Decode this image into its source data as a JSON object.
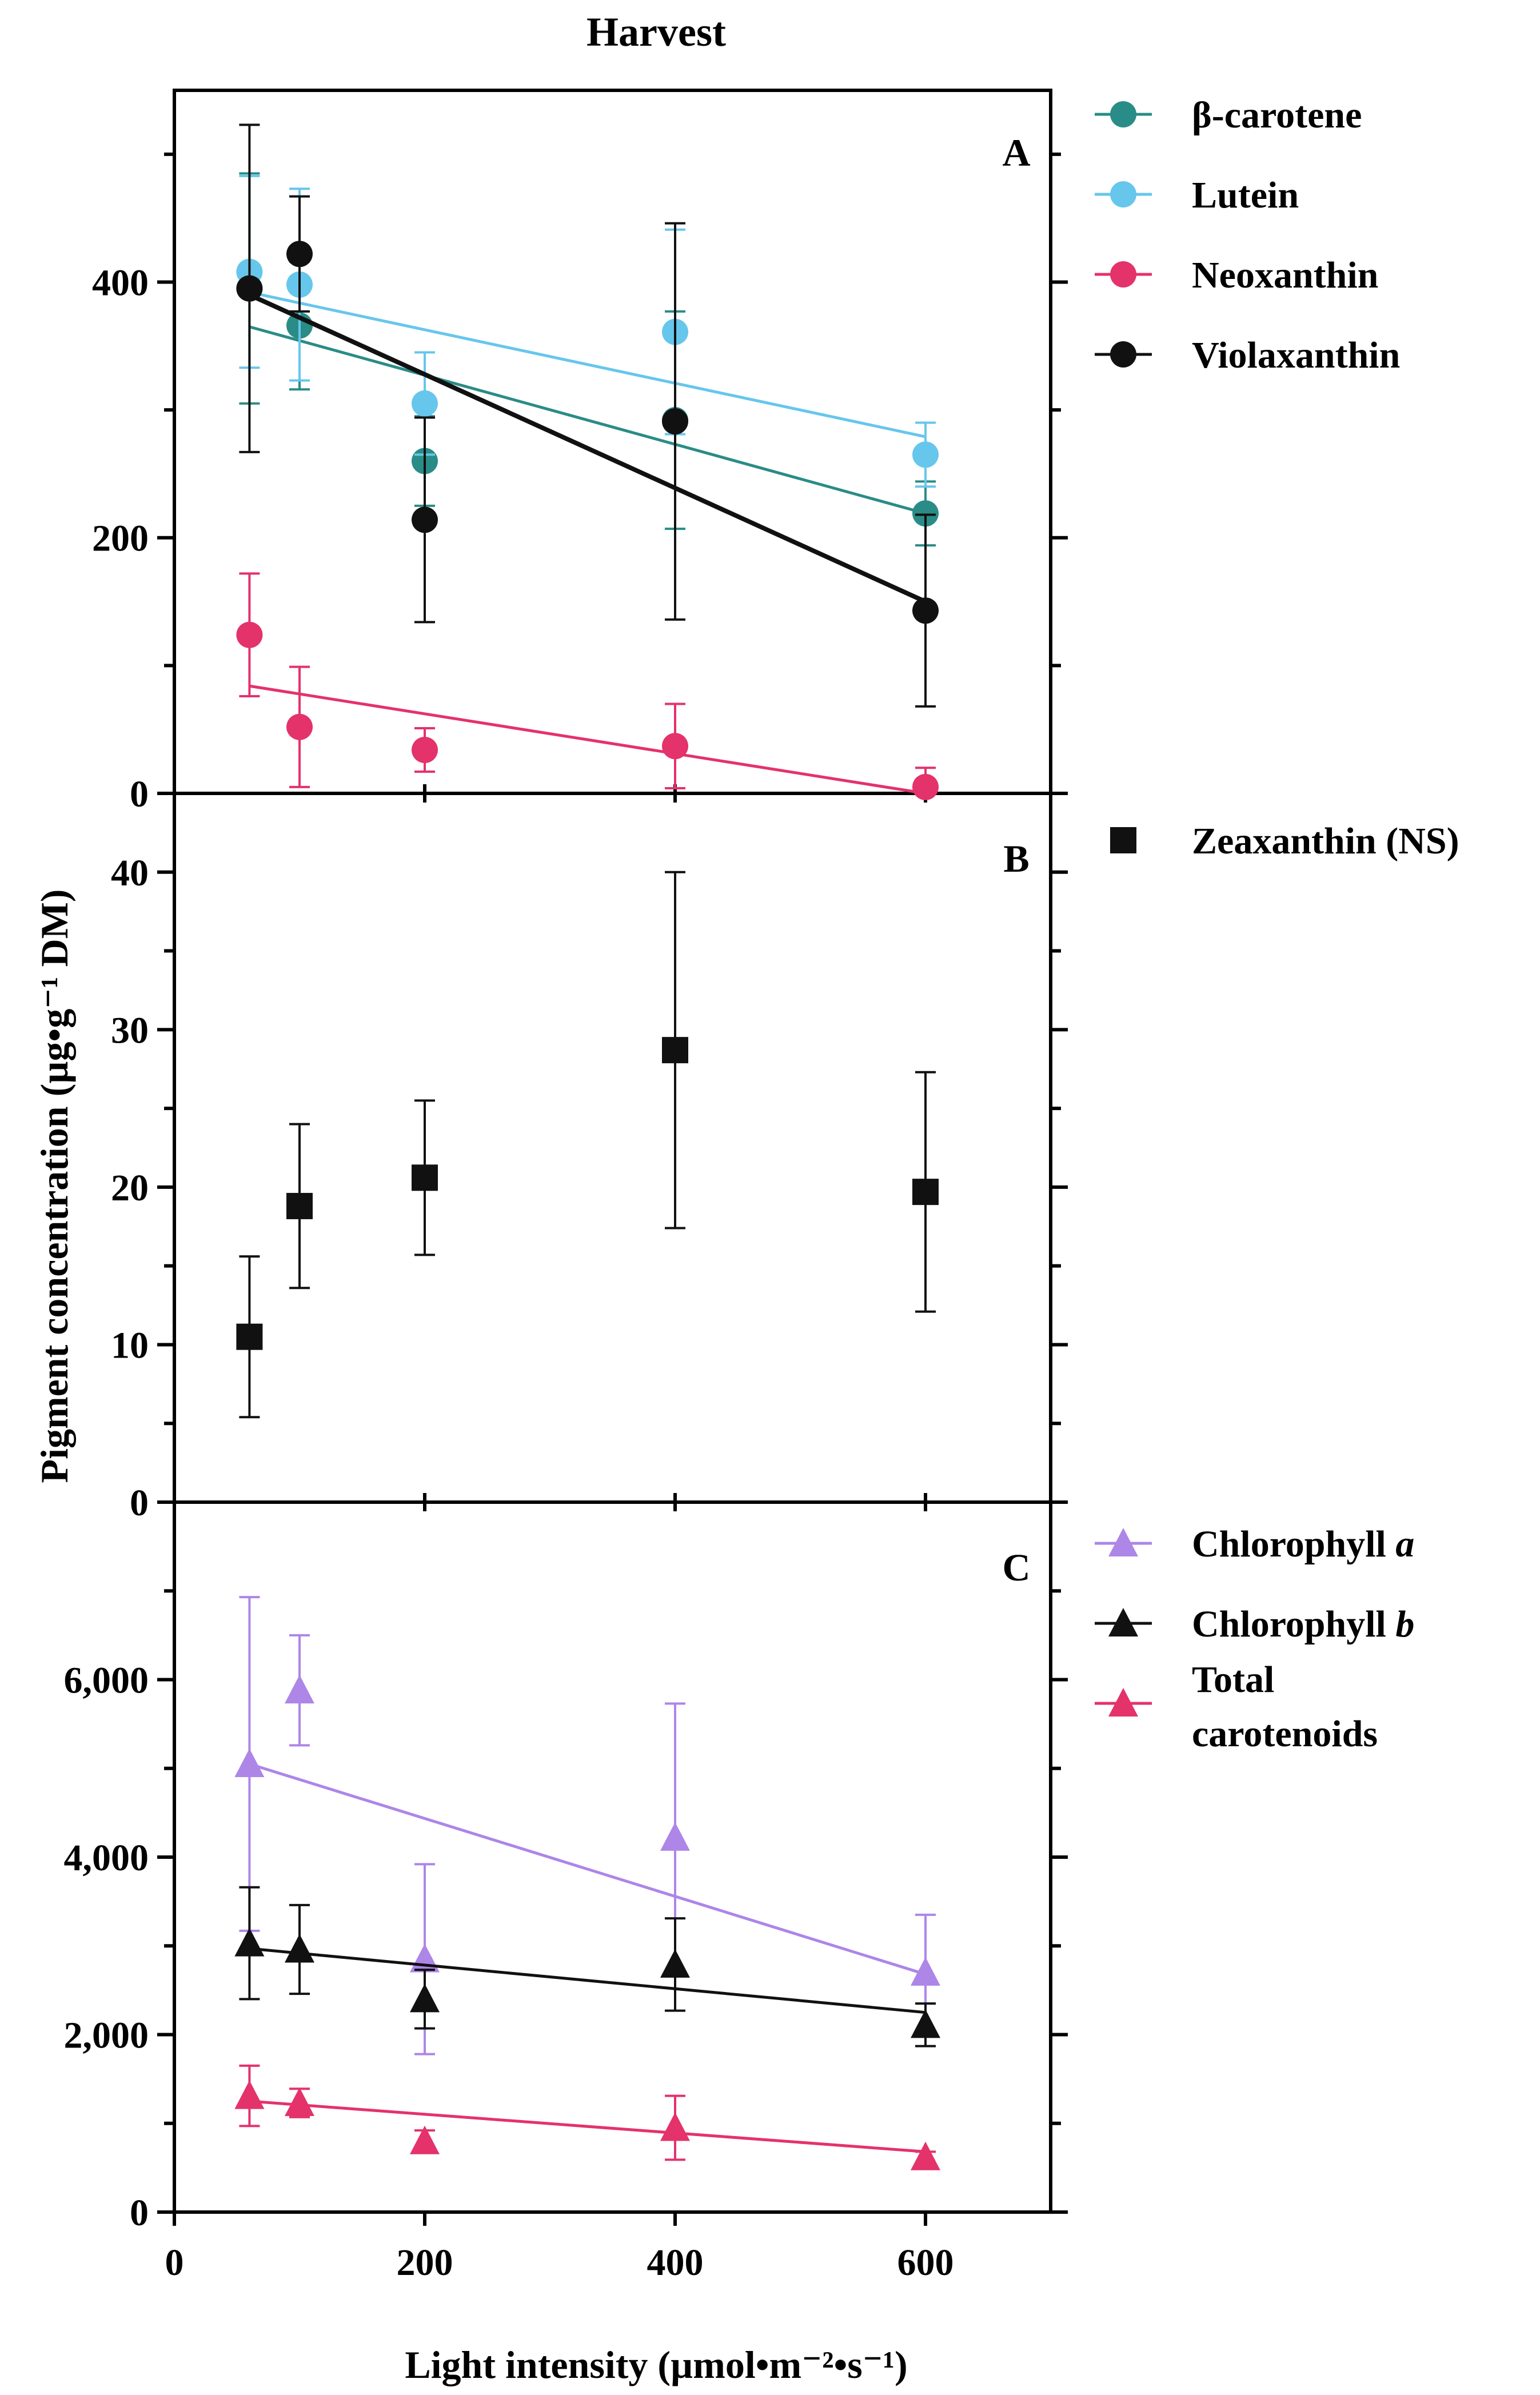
{
  "chart_data": {
    "type": "scatter",
    "title": "Harvest",
    "ylabel": "Pigment concentration (µg•g⁻¹ DM)",
    "xlabel": "Light intensity (µmol•m⁻²•s⁻¹)",
    "x_axis": {
      "range": [
        0,
        700
      ],
      "ticks": [
        0,
        200,
        400,
        600
      ],
      "tick_labels": [
        "0",
        "200",
        "400",
        "600"
      ]
    },
    "panels": [
      {
        "label": "A",
        "ylim": [
          0,
          550
        ],
        "yticks": [
          0,
          200,
          400
        ],
        "ytick_labels": [
          "0",
          "200",
          "400"
        ],
        "series": [
          {
            "name": "β-carotene",
            "color": "#2a8c86",
            "marker": "circle",
            "x": [
              60,
              100,
              200,
              400,
              600
            ],
            "y": [
              395,
              366,
              260,
              292,
              219
            ],
            "err": [
              90,
              50,
              35,
              85,
              25
            ],
            "fit": [
              365,
              219
            ]
          },
          {
            "name": "Lutein",
            "color": "#67c6ec",
            "marker": "circle",
            "x": [
              60,
              100,
              200,
              400,
              600
            ],
            "y": [
              408,
              398,
              305,
              361,
              265
            ],
            "err": [
              75,
              75,
              40,
              80,
              25
            ],
            "fit": [
              392,
              279
            ]
          },
          {
            "name": "Neoxanthin",
            "color": "#e4326b",
            "marker": "circle",
            "x": [
              60,
              100,
              200,
              400,
              600
            ],
            "y": [
              124,
              52,
              34,
              37,
              5
            ],
            "err": [
              48,
              47,
              17,
              33,
              15
            ],
            "fit": [
              84,
              0
            ]
          },
          {
            "name": "Violaxanthin",
            "color": "#111111",
            "marker": "circle",
            "x": [
              60,
              100,
              200,
              400,
              600
            ],
            "y": [
              395,
              422,
              214,
              291,
              143
            ],
            "err": [
              128,
              45,
              80,
              155,
              75
            ],
            "fit": [
              390,
              150
            ]
          }
        ]
      },
      {
        "label": "B",
        "ylim": [
          0,
          45
        ],
        "yticks": [
          0,
          10,
          20,
          30,
          40
        ],
        "ytick_labels": [
          "0",
          "10",
          "20",
          "30",
          "40"
        ],
        "series": [
          {
            "name": "Zeaxanthin (NS)",
            "color": "#111111",
            "marker": "square",
            "x": [
              60,
              100,
              200,
              400,
              600
            ],
            "y": [
              10.5,
              18.8,
              20.6,
              28.7,
              19.7
            ],
            "err": [
              5.1,
              5.2,
              4.9,
              11.3,
              7.6
            ]
          }
        ]
      },
      {
        "label": "C",
        "ylim": [
          0,
          8000
        ],
        "yticks": [
          0,
          2000,
          4000,
          6000
        ],
        "ytick_labels": [
          "0",
          "2,000",
          "4,000",
          "6,000"
        ],
        "series": [
          {
            "name": "Chlorophyll a",
            "name_prefix": "Chlorophyll",
            "name_suffix": "a",
            "color": "#ad86e8",
            "marker": "triangle",
            "x": [
              60,
              100,
              200,
              400,
              600
            ],
            "y": [
              5050,
              5880,
              2850,
              4220,
              2700
            ],
            "err": [
              1880,
              620,
              1070,
              1510,
              650
            ],
            "fit": [
              5050,
              2680
            ]
          },
          {
            "name": "Chlorophyll b",
            "name_prefix": "Chlorophyll",
            "name_suffix": "b",
            "color": "#111111",
            "marker": "triangle",
            "x": [
              60,
              100,
              200,
              400,
              600
            ],
            "y": [
              3030,
              2960,
              2400,
              2790,
              2110
            ],
            "err": [
              630,
              500,
              330,
              520,
              240
            ],
            "fit": [
              2970,
              2250
            ]
          },
          {
            "name": "Total carotenoids",
            "name_line1": "Total",
            "name_line2": "carotenoids",
            "color": "#e4326b",
            "marker": "triangle",
            "x": [
              60,
              100,
              200,
              400,
              600
            ],
            "y": [
              1310,
              1230,
              800,
              950,
              620
            ],
            "err": [
              340,
              160,
              120,
              360,
              60
            ],
            "fit": [
              1250,
              680
            ]
          }
        ]
      }
    ]
  }
}
